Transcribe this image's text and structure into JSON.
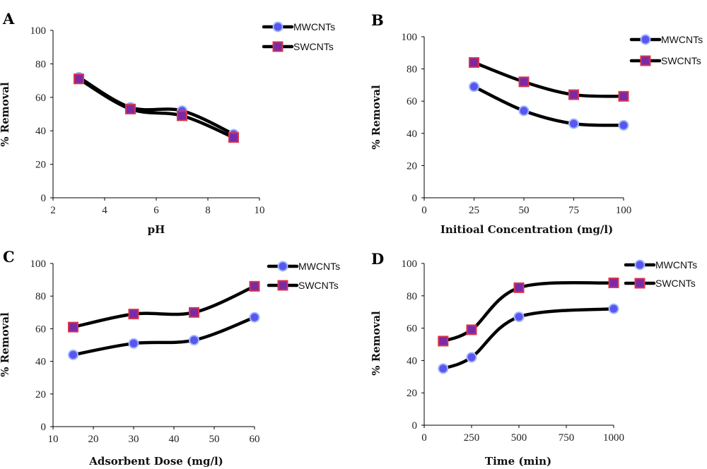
{
  "chart_data": [
    {
      "type": "line",
      "panel_label": "A",
      "xlabel": "pH",
      "ylabel": "% Removal",
      "xlim": [
        2,
        10
      ],
      "ylim": [
        0,
        100
      ],
      "x_ticks": [
        2,
        4,
        6,
        8,
        10
      ],
      "y_ticks": [
        0,
        20,
        40,
        60,
        80,
        100
      ],
      "x_tick_labels": [
        "2",
        "4",
        "6",
        "8",
        "10"
      ],
      "y_tick_labels": [
        "0",
        "20",
        "40",
        "60",
        "80",
        "100"
      ],
      "legend_position": "top-right",
      "series": [
        {
          "name": "MWCNTs",
          "marker": "circle",
          "x": [
            3,
            5,
            7,
            9
          ],
          "y": [
            72,
            54,
            52,
            38
          ]
        },
        {
          "name": "SWCNTs",
          "marker": "square",
          "x": [
            3,
            5,
            7,
            9
          ],
          "y": [
            71,
            53,
            49,
            36
          ]
        }
      ]
    },
    {
      "type": "line",
      "panel_label": "B",
      "xlabel": "Initioal Concentration (mg/l)",
      "ylabel": "% Removal",
      "xlim": [
        0,
        100
      ],
      "ylim": [
        0,
        100
      ],
      "x_ticks": [
        0,
        25,
        50,
        75,
        100
      ],
      "y_ticks": [
        0,
        20,
        40,
        60,
        80,
        100
      ],
      "x_tick_labels": [
        "0",
        "25",
        "50",
        "75",
        "100"
      ],
      "y_tick_labels": [
        "0",
        "20",
        "40",
        "60",
        "80",
        "100"
      ],
      "legend_position": "top-right",
      "series": [
        {
          "name": "MWCNTs",
          "marker": "circle",
          "x": [
            25,
            50,
            75,
            100
          ],
          "y": [
            69,
            54,
            46,
            45
          ]
        },
        {
          "name": "SWCNTs",
          "marker": "square",
          "x": [
            25,
            50,
            75,
            100
          ],
          "y": [
            84,
            72,
            64,
            63
          ]
        }
      ]
    },
    {
      "type": "line",
      "panel_label": "C",
      "xlabel": "Adsorbent Dose (mg/l)",
      "ylabel": "% Removal",
      "xlim": [
        10,
        60
      ],
      "ylim": [
        0,
        100
      ],
      "x_ticks": [
        10,
        20,
        30,
        40,
        50,
        60
      ],
      "y_ticks": [
        0,
        20,
        40,
        60,
        80,
        100
      ],
      "x_tick_labels": [
        "10",
        "20",
        "30",
        "40",
        "50",
        "60"
      ],
      "y_tick_labels": [
        "0",
        "20",
        "40",
        "60",
        "80",
        "100"
      ],
      "legend_position": "top-right",
      "series": [
        {
          "name": "MWCNTs",
          "marker": "circle",
          "x": [
            15,
            30,
            45,
            60
          ],
          "y": [
            44,
            51,
            53,
            67
          ]
        },
        {
          "name": "SWCNTs",
          "marker": "square",
          "x": [
            15,
            30,
            45,
            60
          ],
          "y": [
            61,
            69,
            70,
            86
          ]
        }
      ]
    },
    {
      "type": "line",
      "panel_label": "D",
      "xlabel": "Time (min)",
      "ylabel": "% Removal",
      "xlim": [
        0,
        1000
      ],
      "ylim": [
        0,
        100
      ],
      "x_ticks": [
        0,
        250,
        500,
        750,
        1000
      ],
      "y_ticks": [
        0,
        20,
        40,
        60,
        80,
        100
      ],
      "x_tick_labels": [
        "0",
        "250",
        "500",
        "750",
        "1000"
      ],
      "y_tick_labels": [
        "0",
        "20",
        "40",
        "60",
        "80",
        "100"
      ],
      "legend_position": "top-right",
      "series": [
        {
          "name": "MWCNTs",
          "marker": "circle",
          "x": [
            100,
            250,
            500,
            1000
          ],
          "y": [
            35,
            42,
            67,
            72
          ]
        },
        {
          "name": "SWCNTs",
          "marker": "square",
          "x": [
            100,
            250,
            500,
            1000
          ],
          "y": [
            52,
            59,
            85,
            88
          ]
        }
      ]
    }
  ],
  "colors": {
    "line": "#000000",
    "circle_fill": "#5b55f0",
    "circle_edge": "#9db8ff",
    "square_fill": "#7a2aa6",
    "square_edge": "#d8344f"
  }
}
